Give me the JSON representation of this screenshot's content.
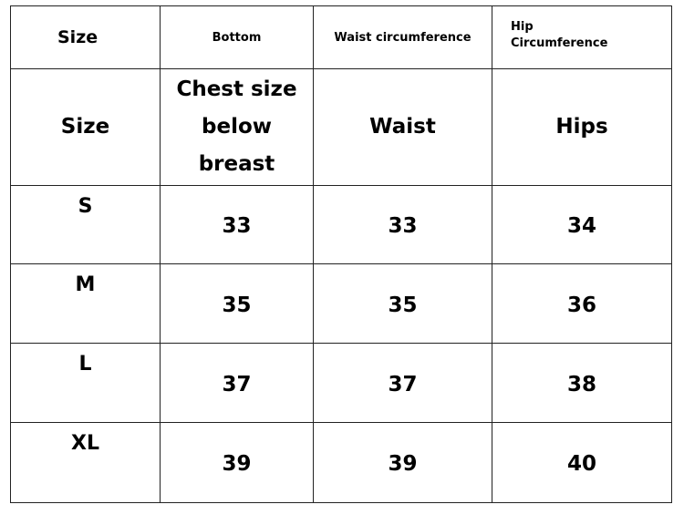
{
  "table": {
    "header_row": [
      "Size",
      "Bottom",
      "Waist circumference",
      "Hip Circumference"
    ],
    "column_row": [
      "Size",
      "Chest size below breast",
      "Waist",
      "Hips"
    ],
    "rows": [
      [
        "S",
        33,
        33,
        34
      ],
      [
        "M",
        35,
        35,
        36
      ],
      [
        "L",
        37,
        37,
        38
      ],
      [
        "XL",
        39,
        39,
        40
      ]
    ]
  }
}
